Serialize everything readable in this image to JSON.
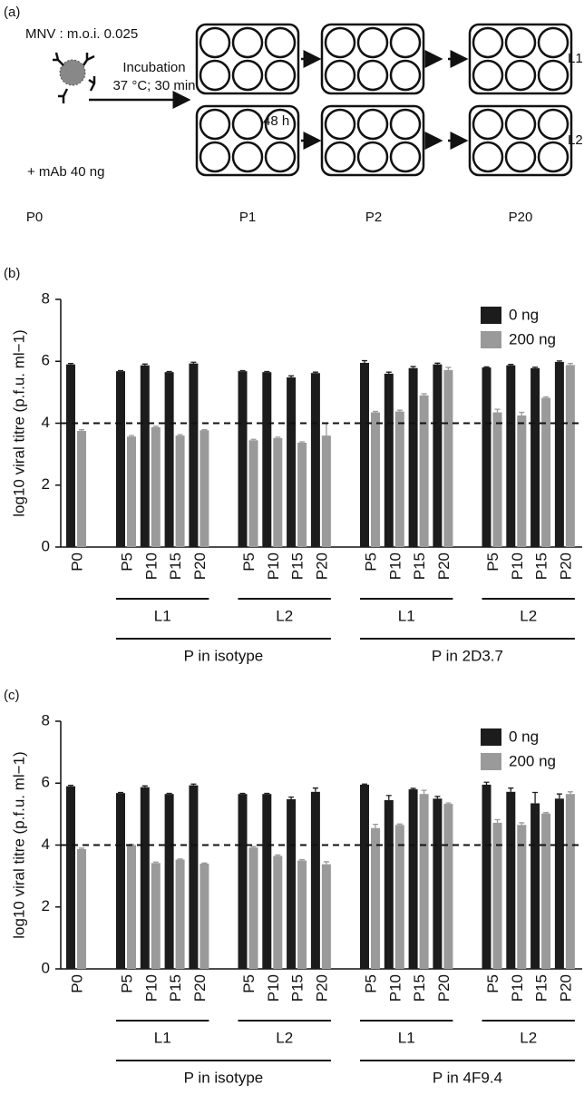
{
  "diagram": {
    "panel_label": "(a)",
    "texts": [
      "MNV : m.o.i. 0.025",
      "Incubation",
      "37 °C; 30 min",
      "48 h",
      "+ mAb 40 ng"
    ],
    "rows": [
      "L1",
      "L2"
    ],
    "stages": [
      "P0",
      "P1",
      "P2",
      "P20"
    ]
  },
  "chart_data": [
    {
      "type": "bar",
      "panel_label": "(b)",
      "y_label": "log10 viral titre (p.f.u. ml−1)",
      "categories": [
        "P0",
        "P5",
        "P10",
        "P15",
        "P20",
        "P5",
        "P10",
        "P15",
        "P20",
        "P5",
        "P10",
        "P15",
        "P20",
        "P5",
        "P10",
        "P15",
        "P20"
      ],
      "groups": [
        "L1",
        "L2",
        "L1",
        "L2"
      ],
      "supergroups": [
        "P in isotype",
        "P in 2D3.7"
      ],
      "series": [
        {
          "name": "0 ng",
          "color": "#1c1c1c",
          "values": [
            5.9,
            5.68,
            5.87,
            5.65,
            5.93,
            5.68,
            5.65,
            5.48,
            5.62,
            5.95,
            5.6,
            5.78,
            5.9,
            5.8,
            5.87,
            5.78,
            5.98
          ],
          "errors": [
            0.03,
            0.02,
            0.04,
            0.02,
            0.04,
            0.02,
            0.02,
            0.05,
            0.03,
            0.07,
            0.05,
            0.05,
            0.04,
            0.02,
            0.03,
            0.03,
            0.03
          ]
        },
        {
          "name": "200 ng",
          "color": "#9a9a9a",
          "values": [
            3.75,
            3.57,
            3.87,
            3.6,
            3.77,
            3.45,
            3.52,
            3.37,
            3.6,
            4.35,
            4.38,
            4.9,
            5.72,
            4.35,
            4.25,
            4.82,
            5.88
          ],
          "errors": [
            0.04,
            0.03,
            0.03,
            0.03,
            0.02,
            0.03,
            0.03,
            0.03,
            0.4,
            0.03,
            0.04,
            0.05,
            0.08,
            0.1,
            0.1,
            0.03,
            0.05
          ]
        }
      ],
      "ylim": [
        0,
        8
      ],
      "yticks": [
        0,
        2,
        4,
        6,
        8
      ],
      "reference_line": 4,
      "legend": "upper right"
    },
    {
      "type": "bar",
      "panel_label": "(c)",
      "y_label": "log10 viral titre (p.f.u. ml−1)",
      "categories": [
        "P0",
        "P5",
        "P10",
        "P15",
        "P20",
        "P5",
        "P10",
        "P15",
        "P20",
        "P5",
        "P10",
        "P15",
        "P20",
        "P5",
        "P10",
        "P15",
        "P20"
      ],
      "groups": [
        "L1",
        "L2",
        "L1",
        "L2"
      ],
      "supergroups": [
        "P in isotype",
        "P in 4F9.4"
      ],
      "series": [
        {
          "name": "0 ng",
          "color": "#1c1c1c",
          "values": [
            5.9,
            5.68,
            5.87,
            5.65,
            5.93,
            5.65,
            5.65,
            5.48,
            5.72,
            5.95,
            5.45,
            5.8,
            5.5,
            5.95,
            5.72,
            5.35,
            5.5
          ],
          "errors": [
            0.03,
            0.02,
            0.04,
            0.02,
            0.04,
            0.02,
            0.02,
            0.07,
            0.12,
            0.02,
            0.15,
            0.03,
            0.07,
            0.08,
            0.12,
            0.35,
            0.15
          ]
        },
        {
          "name": "200 ng",
          "color": "#9a9a9a",
          "values": [
            3.87,
            4.0,
            3.42,
            3.53,
            3.4,
            3.92,
            3.65,
            3.5,
            3.38,
            4.55,
            4.65,
            5.65,
            5.33,
            4.72,
            4.65,
            5.02,
            5.65
          ],
          "errors": [
            0.03,
            0.02,
            0.03,
            0.02,
            0.02,
            0.03,
            0.03,
            0.03,
            0.08,
            0.12,
            0.03,
            0.12,
            0.03,
            0.1,
            0.07,
            0.03,
            0.07
          ]
        }
      ],
      "ylim": [
        0,
        8
      ],
      "yticks": [
        0,
        2,
        4,
        6,
        8
      ],
      "reference_line": 4,
      "legend": "upper right"
    }
  ]
}
